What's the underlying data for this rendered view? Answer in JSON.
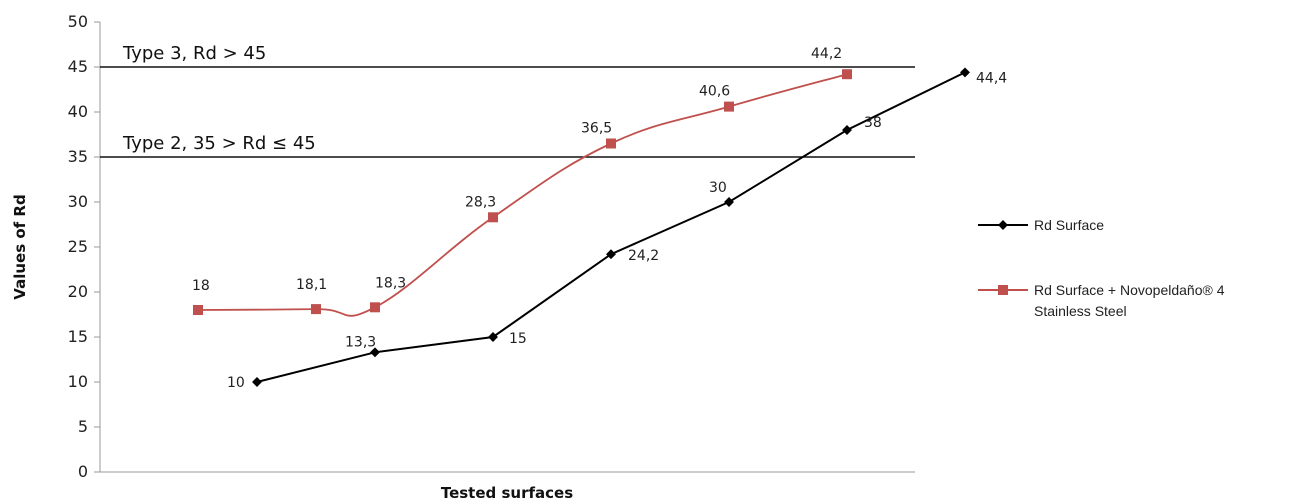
{
  "chart_data": {
    "type": "line",
    "title": "",
    "xlabel": "Tested surfaces",
    "ylabel": "Values of Rd",
    "ylim": [
      0,
      50
    ],
    "yticks": [
      "0",
      "5",
      "10",
      "15",
      "20",
      "25",
      "30",
      "35",
      "40",
      "45",
      "50"
    ],
    "grid": false,
    "legend_position": "right",
    "reference_lines": [
      {
        "value": 45,
        "label": "Type 3,  Rd > 45"
      },
      {
        "value": 35,
        "label": "Type 2,  35 > Rd ≤ 45"
      }
    ],
    "series": [
      {
        "name": "Rd Surface",
        "color": "#000000",
        "marker": "diamond",
        "x": [
          1,
          2,
          3,
          4,
          5,
          6,
          7
        ],
        "values": [
          10,
          13.3,
          15,
          24.2,
          30,
          38,
          44.4
        ],
        "labels": [
          "10",
          "13,3",
          "15",
          "24,2",
          "30",
          "38",
          "44,4"
        ]
      },
      {
        "name": "Rd Surface + Novopeldaño® 4 Stainless Steel",
        "legend_lines": [
          "Rd Surface + Novopeldaño® 4",
          "Stainless Steel"
        ],
        "color": "#c0504d",
        "marker": "square",
        "x": [
          0.5,
          1.5,
          2,
          3,
          4,
          5,
          6
        ],
        "values": [
          18,
          18.1,
          18.3,
          28.3,
          36.5,
          40.6,
          44.2
        ],
        "labels": [
          "18",
          "18,1",
          "18,3",
          "28,3",
          "36,5",
          "40,6",
          "44,2"
        ]
      }
    ]
  }
}
